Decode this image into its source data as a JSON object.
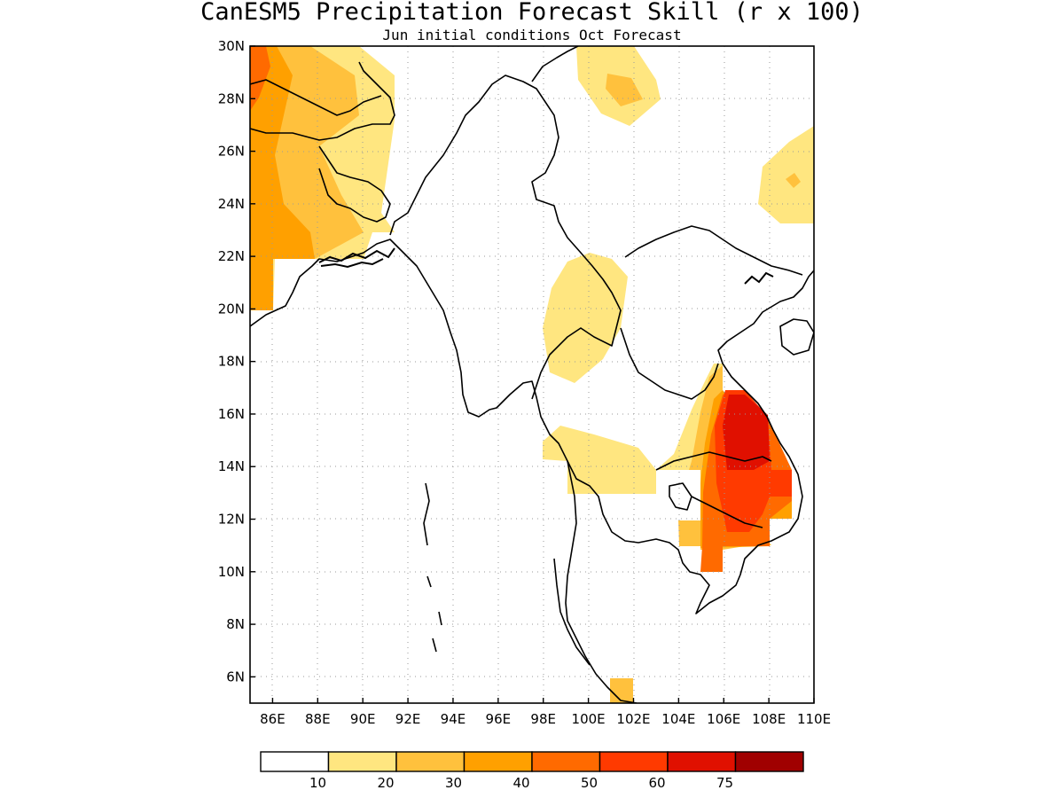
{
  "title": "CanESM5 Precipitation Forecast Skill (r x 100)",
  "subtitle": "Jun initial conditions  Oct Forecast",
  "map": {
    "lon_range": [
      85,
      110
    ],
    "lat_range": [
      5,
      30
    ],
    "lat_ticks": [
      "30N",
      "28N",
      "26N",
      "24N",
      "22N",
      "20N",
      "18N",
      "16N",
      "14N",
      "12N",
      "10N",
      "8N",
      "6N"
    ],
    "lon_ticks": [
      "86E",
      "88E",
      "90E",
      "92E",
      "94E",
      "96E",
      "98E",
      "100E",
      "102E",
      "104E",
      "106E",
      "108E",
      "110E"
    ],
    "gridlines": true
  },
  "legend": {
    "colors": [
      "#ffffff",
      "#ffe680",
      "#ffc13d",
      "#ffa000",
      "#ff6a00",
      "#ff3a00",
      "#e01000",
      "#a00000"
    ],
    "labels": [
      "10",
      "20",
      "30",
      "40",
      "50",
      "60",
      "75"
    ]
  },
  "chart_data": {
    "type": "map",
    "variable": "r x 100",
    "levels": [
      10,
      20,
      30,
      40,
      50,
      60,
      75
    ],
    "colors": [
      "#ffffff",
      "#ffe680",
      "#ffc13d",
      "#ffa000",
      "#ff6a00",
      "#ff3a00",
      "#e01000",
      "#a00000"
    ]
  }
}
